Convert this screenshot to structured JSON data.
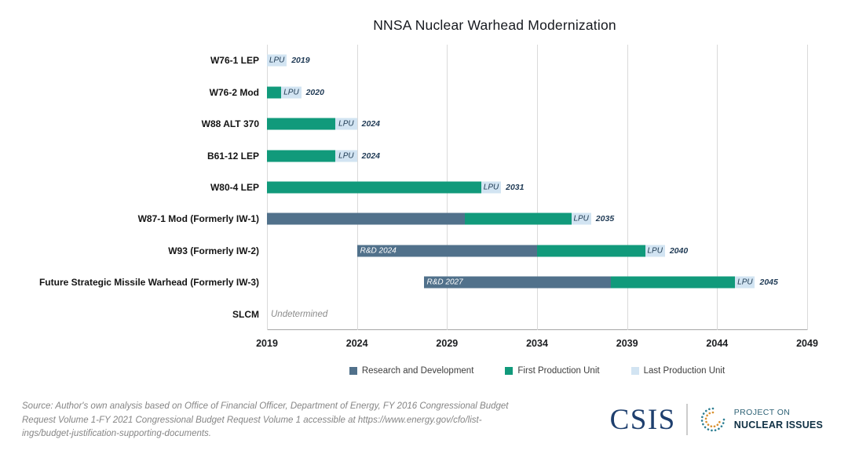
{
  "title": "NNSA Nuclear Warhead Modernization",
  "chart_data": {
    "type": "gantt",
    "title": "NNSA Nuclear Warhead Modernization",
    "x_axis": {
      "min": 2019,
      "max": 2049,
      "ticks": [
        "2019",
        "2024",
        "2029",
        "2034",
        "2039",
        "2044",
        "2049"
      ],
      "grid": true
    },
    "colors": {
      "rd": "#51718b",
      "fpu": "#119a7b",
      "lpu": "#d2e4f2"
    },
    "legend": [
      {
        "key": "rd",
        "label": "Research and Development"
      },
      {
        "key": "fpu",
        "label": "First Production Unit"
      },
      {
        "key": "lpu",
        "label": "Last Production Unit"
      }
    ],
    "rows": [
      {
        "label": "W76-1 LEP",
        "segments": [
          {
            "type": "lpu",
            "start": 2019,
            "end": 2020.1,
            "text": "LPU"
          }
        ],
        "end_label": "2019"
      },
      {
        "label": "W76-2 Mod",
        "segments": [
          {
            "type": "fpu",
            "start": 2019,
            "end": 2019.8
          },
          {
            "type": "lpu",
            "start": 2019.8,
            "end": 2020.9,
            "text": "LPU"
          }
        ],
        "end_label": "2020"
      },
      {
        "label": "W88 ALT 370",
        "segments": [
          {
            "type": "fpu",
            "start": 2019,
            "end": 2022.8
          },
          {
            "type": "lpu",
            "start": 2022.8,
            "end": 2024,
            "text": "LPU"
          }
        ],
        "end_label": "2024"
      },
      {
        "label": "B61-12 LEP",
        "segments": [
          {
            "type": "fpu",
            "start": 2019,
            "end": 2022.8
          },
          {
            "type": "lpu",
            "start": 2022.8,
            "end": 2024,
            "text": "LPU"
          }
        ],
        "end_label": "2024"
      },
      {
        "label": "W80-4 LEP",
        "segments": [
          {
            "type": "fpu",
            "start": 2019,
            "end": 2030.9
          },
          {
            "type": "lpu",
            "start": 2030.9,
            "end": 2032,
            "text": "LPU"
          }
        ],
        "end_label": "2031"
      },
      {
        "label": "W87-1 Mod (Formerly IW-1)",
        "segments": [
          {
            "type": "rd",
            "start": 2019,
            "end": 2030
          },
          {
            "type": "fpu",
            "start": 2030,
            "end": 2035.9
          },
          {
            "type": "lpu",
            "start": 2035.9,
            "end": 2037,
            "text": "LPU"
          }
        ],
        "end_label": "2035"
      },
      {
        "label": "W93 (Formerly IW-2)",
        "segments": [
          {
            "type": "rd",
            "start": 2024,
            "end": 2034,
            "text": "R&D 2024"
          },
          {
            "type": "fpu",
            "start": 2034,
            "end": 2040
          },
          {
            "type": "lpu",
            "start": 2040,
            "end": 2041.1,
            "text": "LPU"
          }
        ],
        "end_label": "2040"
      },
      {
        "label": "Future Strategic Missile Warhead (Formerly IW-3)",
        "segments": [
          {
            "type": "rd",
            "start": 2027.7,
            "end": 2038.1,
            "text": "R&D 2027"
          },
          {
            "type": "fpu",
            "start": 2038.1,
            "end": 2045
          },
          {
            "type": "lpu",
            "start": 2045,
            "end": 2046.1,
            "text": "LPU"
          }
        ],
        "end_label": "2045"
      },
      {
        "label": "SLCM",
        "segments": [],
        "note": "Undetermined"
      }
    ]
  },
  "source": {
    "lines": [
      "Source: Author's own analysis based on Office of Financial Officer, Department of Energy, FY 2016 Congressional Budget",
      "Request Volume 1-FY 2021 Congressional Budget Request Volume 1 accessible at https://www.energy.gov/cfo/list-",
      "ings/budget-justification-supporting-documents."
    ]
  },
  "branding": {
    "csis": "CSIS",
    "poni_line1": "PROJECT ON",
    "poni_line2": "NUCLEAR ISSUES"
  }
}
